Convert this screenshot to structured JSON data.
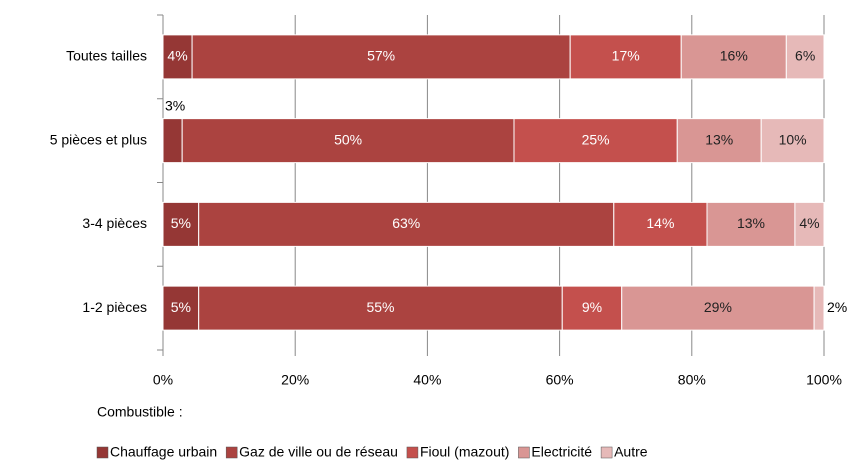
{
  "chart_data": {
    "type": "bar",
    "orientation": "horizontal",
    "stacked": true,
    "categories": [
      "Toutes tailles",
      "5 pièces et plus",
      "3-4 pièces",
      "1-2 pièces"
    ],
    "series": [
      {
        "name": "Chauffage urbain",
        "color": "#953735",
        "values": [
          4.4,
          2.9,
          5.4,
          5.4
        ],
        "value_labels": [
          "4%",
          "3%",
          "5%",
          "5%"
        ]
      },
      {
        "name": "Gaz de ville ou de réseau",
        "color": "#ab4340",
        "values": [
          57.2,
          50.2,
          62.8,
          55.0
        ],
        "value_labels": [
          "57%",
          "50%",
          "63%",
          "55%"
        ]
      },
      {
        "name": "Fioul (mazout)",
        "color": "#c4504d",
        "values": [
          16.8,
          24.7,
          14.1,
          9.0
        ],
        "value_labels": [
          "17%",
          "25%",
          "14%",
          "9%"
        ]
      },
      {
        "name": "Electricité",
        "color": "#d99694",
        "values": [
          15.9,
          12.7,
          13.3,
          29.1
        ],
        "value_labels": [
          "16%",
          "13%",
          "13%",
          "29%"
        ]
      },
      {
        "name": "Autre",
        "color": "#e6b9b8",
        "values": [
          5.7,
          9.5,
          4.4,
          1.5
        ],
        "value_labels": [
          "6%",
          "10%",
          "4%",
          "2%"
        ]
      }
    ],
    "xlim": [
      0,
      100
    ],
    "xticks": [
      {
        "value": 0,
        "label": "0%"
      },
      {
        "value": 20,
        "label": "20%"
      },
      {
        "value": 40,
        "label": "40%"
      },
      {
        "value": 60,
        "label": "60%"
      },
      {
        "value": 80,
        "label": "80%"
      },
      {
        "value": 100,
        "label": "100%"
      }
    ],
    "grid": true,
    "legend_title": "Combustible :",
    "legend": "bottom"
  }
}
